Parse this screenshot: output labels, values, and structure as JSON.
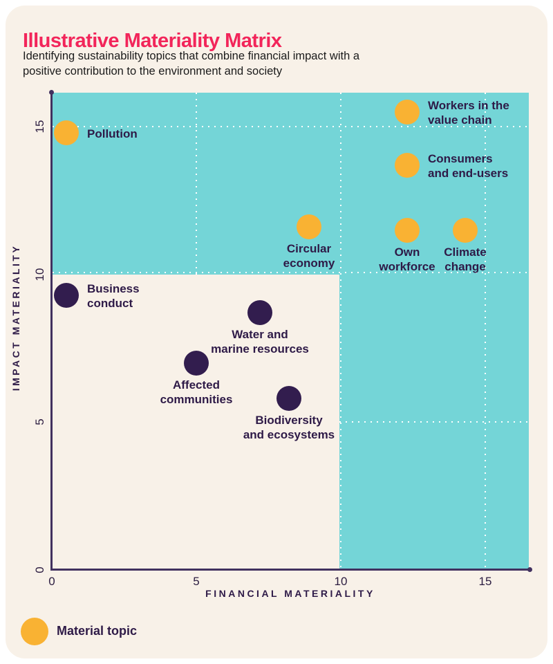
{
  "header": {
    "title": "Illustrative Materiality Matrix",
    "subtitle": "Identifying sustainability topics that combine financial impact with a positive contribution to the environment and society"
  },
  "chart_data": {
    "type": "scatter",
    "title": "Illustrative Materiality Matrix",
    "xlabel": "FINANCIAL MATERIALITY",
    "ylabel": "IMPACT MATERIALITY",
    "xlim": [
      0,
      16.5
    ],
    "ylim": [
      0,
      16.2
    ],
    "x_ticks": [
      0,
      5,
      10,
      15
    ],
    "y_ticks": [
      0,
      5,
      10,
      15
    ],
    "grid_x": [
      5,
      10,
      15
    ],
    "grid_y": [
      5,
      10,
      15
    ],
    "grid_style": "white dotted, visible over shaded region only",
    "material_threshold": 10,
    "shaded_region": "x > 10 or y > 10",
    "points": [
      {
        "label": "Pollution",
        "label_lines": [
          "Pollution"
        ],
        "x": 0.5,
        "y": 14.8,
        "material": true,
        "label_pos": "right"
      },
      {
        "label": "Workers in the value chain",
        "label_lines": [
          "Workers in the",
          "value chain"
        ],
        "x": 12.3,
        "y": 15.5,
        "material": true,
        "label_pos": "right"
      },
      {
        "label": "Consumers and end-users",
        "label_lines": [
          "Consumers",
          "and end-users"
        ],
        "x": 12.3,
        "y": 13.7,
        "material": true,
        "label_pos": "right"
      },
      {
        "label": "Circular economy",
        "label_lines": [
          "Circular",
          "economy"
        ],
        "x": 8.9,
        "y": 11.6,
        "material": true,
        "label_pos": "below"
      },
      {
        "label": "Own workforce",
        "label_lines": [
          "Own",
          "workforce"
        ],
        "x": 12.3,
        "y": 11.5,
        "material": true,
        "label_pos": "below"
      },
      {
        "label": "Climate change",
        "label_lines": [
          "Climate",
          "change"
        ],
        "x": 14.3,
        "y": 11.5,
        "material": true,
        "label_pos": "below"
      },
      {
        "label": "Business conduct",
        "label_lines": [
          "Business",
          "conduct"
        ],
        "x": 0.5,
        "y": 9.3,
        "material": false,
        "label_pos": "right"
      },
      {
        "label": "Water and marine resources",
        "label_lines": [
          "Water and",
          "marine resources"
        ],
        "x": 7.2,
        "y": 8.7,
        "material": false,
        "label_pos": "below"
      },
      {
        "label": "Affected communities",
        "label_lines": [
          "Affected",
          "communities"
        ],
        "x": 5.0,
        "y": 7.0,
        "material": false,
        "label_pos": "below"
      },
      {
        "label": "Biodiversity and ecosystems",
        "label_lines": [
          "Biodiversity",
          "and ecosystems"
        ],
        "x": 8.2,
        "y": 5.8,
        "material": false,
        "label_pos": "below"
      }
    ],
    "legend": [
      {
        "label": "Material topic",
        "color": "#f9b233"
      }
    ]
  },
  "colors": {
    "background_card": "#f8f1e8",
    "page_background": "#ffffff",
    "shaded_band": "#74d5d7",
    "material_dot": "#f9b233",
    "non_material_dot": "#321d4e",
    "axis": "#41315f",
    "label_text": "#2e1a47",
    "title_pink": "#f2255a",
    "gridline": "#ffffff"
  }
}
